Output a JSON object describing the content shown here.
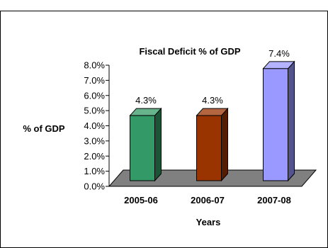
{
  "chart_data": {
    "type": "bar",
    "title": "Fiscal Deficit % of GDP",
    "xlabel": "Years",
    "ylabel": "% of GDP",
    "categories": [
      "2005-06",
      "2006-07",
      "2007-08"
    ],
    "values": [
      4.3,
      4.3,
      7.4
    ],
    "data_labels": [
      "4.3%",
      "4.3%",
      "7.4%"
    ],
    "bar_colors": [
      "#339966",
      "#993300",
      "#9999ff"
    ],
    "ylim": [
      0,
      8
    ],
    "yticks": [
      "0.0%",
      "1.0%",
      "2.0%",
      "3.0%",
      "4.0%",
      "5.0%",
      "6.0%",
      "7.0%",
      "8.0%"
    ],
    "grid": false,
    "legend": "none",
    "style": "3d-column"
  }
}
